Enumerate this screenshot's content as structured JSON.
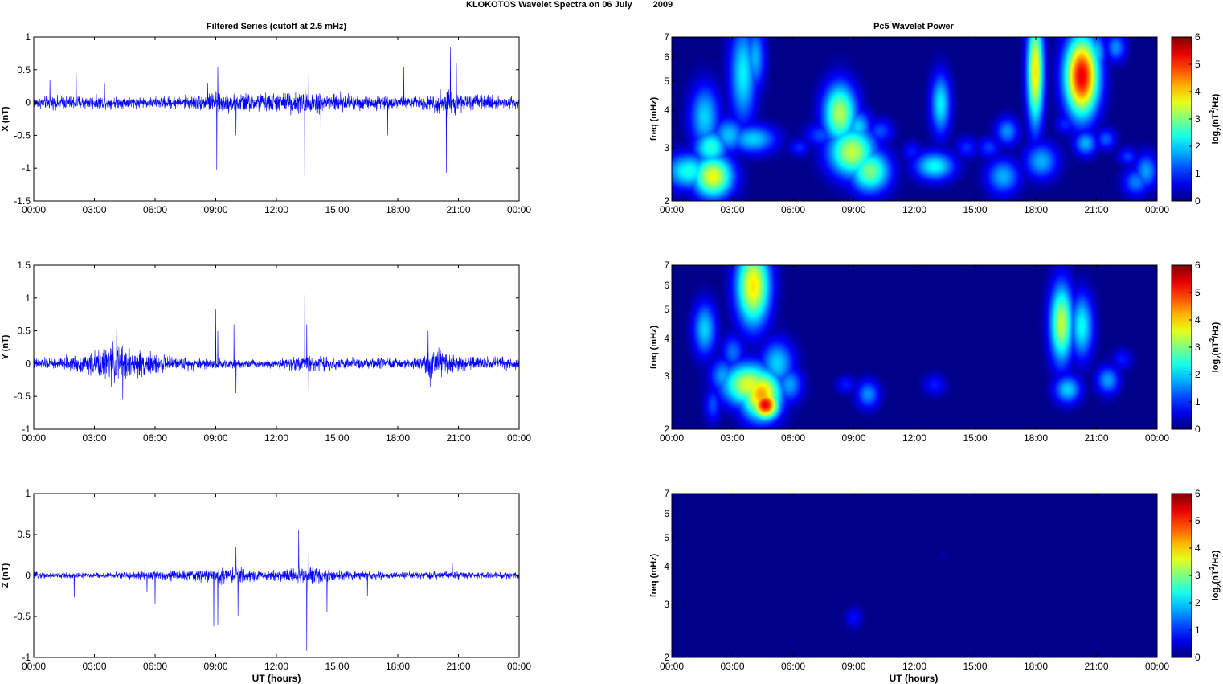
{
  "figure": {
    "title_prefix": "KLOKOTOS Wavelet Spectra on 06 July",
    "title_year": "2009",
    "left_title": "Filtered Series (cutoff at 2.5 mHz)",
    "right_title": "Pc5 Wavelet Power",
    "xlabel": "UT (hours)",
    "time_ticks": [
      "00:00",
      "03:00",
      "06:00",
      "09:00",
      "12:00",
      "15:00",
      "18:00",
      "21:00",
      "00:00"
    ]
  },
  "chart_data": [
    {
      "id": "X",
      "type": "line",
      "ylabel": "X (nT)",
      "ylim": [
        -1.5,
        1
      ],
      "yticks": [
        1,
        0.5,
        0,
        -0.5,
        -1,
        -1.5
      ],
      "ytick_labels": [
        "1",
        "0.5",
        "0",
        "-0.5",
        "-1",
        "-1.5"
      ],
      "xlim_hours": [
        0,
        24
      ],
      "color": "#0000ff",
      "envelope": [
        [
          0,
          0.07
        ],
        [
          2,
          0.09
        ],
        [
          3,
          0.08
        ],
        [
          4,
          0.07
        ],
        [
          6,
          0.07
        ],
        [
          8.5,
          0.1
        ],
        [
          9,
          0.13
        ],
        [
          10,
          0.12
        ],
        [
          12,
          0.12
        ],
        [
          13.5,
          0.15
        ],
        [
          16,
          0.1
        ],
        [
          18,
          0.07
        ],
        [
          19.5,
          0.09
        ],
        [
          20.5,
          0.18
        ],
        [
          21,
          0.11
        ],
        [
          22,
          0.09
        ],
        [
          24,
          0.08
        ]
      ],
      "spikes": [
        [
          0.8,
          0.35
        ],
        [
          2.1,
          0.45
        ],
        [
          3.5,
          0.3
        ],
        [
          8.6,
          0.3
        ],
        [
          9.05,
          -1.02
        ],
        [
          9.1,
          0.55
        ],
        [
          10.0,
          -0.5
        ],
        [
          13.4,
          -1.12
        ],
        [
          13.6,
          0.45
        ],
        [
          14.2,
          -0.6
        ],
        [
          17.5,
          -0.5
        ],
        [
          18.3,
          0.55
        ],
        [
          20.4,
          -1.07
        ],
        [
          20.6,
          0.85
        ],
        [
          20.9,
          0.6
        ]
      ]
    },
    {
      "id": "Y",
      "type": "line",
      "ylabel": "Y (nT)",
      "ylim": [
        -1,
        1.5
      ],
      "yticks": [
        1.5,
        1,
        0.5,
        0,
        -0.5,
        -1
      ],
      "ytick_labels": [
        "1.5",
        "1",
        "0.5",
        "0",
        "-0.5",
        "-1"
      ],
      "xlim_hours": [
        0,
        24
      ],
      "color": "#0000ff",
      "envelope": [
        [
          0,
          0.07
        ],
        [
          1,
          0.07
        ],
        [
          2,
          0.1
        ],
        [
          3,
          0.15
        ],
        [
          4,
          0.25
        ],
        [
          5,
          0.18
        ],
        [
          6,
          0.12
        ],
        [
          7,
          0.08
        ],
        [
          9,
          0.07
        ],
        [
          10,
          0.05
        ],
        [
          12,
          0.05
        ],
        [
          13,
          0.1
        ],
        [
          14,
          0.1
        ],
        [
          16,
          0.06
        ],
        [
          19,
          0.07
        ],
        [
          19.7,
          0.2
        ],
        [
          21,
          0.1
        ],
        [
          22,
          0.08
        ],
        [
          24,
          0.08
        ]
      ],
      "spikes": [
        [
          4.1,
          0.52
        ],
        [
          4.4,
          -0.55
        ],
        [
          9.0,
          0.83
        ],
        [
          9.1,
          0.5
        ],
        [
          9.9,
          0.6
        ],
        [
          10.0,
          -0.45
        ],
        [
          13.4,
          1.05
        ],
        [
          13.5,
          0.6
        ],
        [
          13.6,
          -0.45
        ],
        [
          19.5,
          0.5
        ],
        [
          19.6,
          -0.35
        ]
      ]
    },
    {
      "id": "Z",
      "type": "line",
      "ylabel": "Z (nT)",
      "ylim": [
        -1,
        1
      ],
      "yticks": [
        1,
        0.5,
        0,
        -0.5,
        -1
      ],
      "ytick_labels": [
        "1",
        "0.5",
        "0",
        "-0.5",
        "-1"
      ],
      "xlim_hours": [
        0,
        24
      ],
      "color": "#0000ff",
      "envelope": [
        [
          0,
          0.03
        ],
        [
          4,
          0.03
        ],
        [
          5.5,
          0.05
        ],
        [
          7,
          0.05
        ],
        [
          8.5,
          0.06
        ],
        [
          10,
          0.08
        ],
        [
          11,
          0.05
        ],
        [
          13,
          0.07
        ],
        [
          14,
          0.09
        ],
        [
          15,
          0.05
        ],
        [
          18,
          0.03
        ],
        [
          20.5,
          0.04
        ],
        [
          24,
          0.03
        ]
      ],
      "spikes": [
        [
          2.0,
          -0.27
        ],
        [
          5.5,
          0.28
        ],
        [
          5.6,
          -0.2
        ],
        [
          6.0,
          -0.35
        ],
        [
          8.9,
          -0.62
        ],
        [
          9.1,
          -0.6
        ],
        [
          10.0,
          0.35
        ],
        [
          10.1,
          -0.5
        ],
        [
          13.1,
          0.55
        ],
        [
          13.5,
          -0.92
        ],
        [
          13.6,
          0.3
        ],
        [
          14.5,
          -0.45
        ],
        [
          16.5,
          -0.25
        ],
        [
          20.7,
          0.15
        ]
      ]
    },
    {
      "id": "X-wavelet",
      "type": "heatmap",
      "ylabel": "freq (mHz)",
      "y_scale": "log",
      "ylim": [
        2,
        7
      ],
      "yticks": [
        2,
        3,
        4,
        5,
        6,
        7
      ],
      "ytick_labels": [
        "2",
        "3",
        "4",
        "5",
        "6",
        "7"
      ],
      "xlim_hours": [
        0,
        24
      ],
      "colorbar_label": "log2(nT^2/Hz)",
      "colorbar_ticks": [
        "0",
        "1",
        "2",
        "3",
        "4",
        "5",
        "6"
      ],
      "colorbar_range": [
        0,
        6
      ],
      "blobs": [
        [
          0.8,
          2.5,
          0.14,
          0.1,
          2.4
        ],
        [
          1.6,
          3.8,
          0.09,
          0.18,
          2.0
        ],
        [
          2.0,
          2.4,
          0.12,
          0.12,
          3.7
        ],
        [
          1.9,
          3.0,
          0.1,
          0.1,
          2.5
        ],
        [
          2.8,
          3.3,
          0.1,
          0.1,
          1.9
        ],
        [
          3.5,
          5.3,
          0.08,
          0.28,
          2.2
        ],
        [
          4.0,
          3.2,
          0.14,
          0.08,
          2.0
        ],
        [
          4.1,
          6.0,
          0.06,
          0.18,
          1.8
        ],
        [
          6.3,
          3.0,
          0.06,
          0.05,
          1.0
        ],
        [
          7.4,
          3.3,
          0.1,
          0.07,
          1.2
        ],
        [
          8.3,
          3.9,
          0.1,
          0.17,
          3.3
        ],
        [
          8.9,
          2.9,
          0.14,
          0.14,
          3.4
        ],
        [
          9.2,
          3.5,
          0.08,
          0.1,
          2.0
        ],
        [
          9.8,
          2.5,
          0.12,
          0.12,
          3.0
        ],
        [
          10.3,
          3.4,
          0.08,
          0.07,
          1.2
        ],
        [
          11.9,
          2.9,
          0.06,
          0.06,
          0.9
        ],
        [
          13.0,
          2.6,
          0.12,
          0.08,
          2.3
        ],
        [
          13.3,
          4.2,
          0.06,
          0.17,
          2.2
        ],
        [
          14.6,
          3.0,
          0.07,
          0.06,
          1.0
        ],
        [
          15.7,
          3.0,
          0.07,
          0.06,
          1.1
        ],
        [
          16.4,
          2.4,
          0.1,
          0.1,
          1.8
        ],
        [
          16.6,
          3.4,
          0.07,
          0.08,
          1.6
        ],
        [
          18.0,
          5.4,
          0.05,
          0.3,
          3.9
        ],
        [
          18.3,
          2.7,
          0.1,
          0.1,
          1.8
        ],
        [
          19.5,
          3.6,
          0.06,
          0.06,
          1.0
        ],
        [
          20.3,
          5.2,
          0.1,
          0.22,
          5.4
        ],
        [
          20.6,
          5.9,
          0.05,
          0.15,
          3.5
        ],
        [
          20.5,
          3.1,
          0.07,
          0.07,
          1.8
        ],
        [
          21.0,
          6.2,
          0.06,
          0.12,
          2.0
        ],
        [
          21.5,
          3.2,
          0.06,
          0.06,
          1.3
        ],
        [
          22.0,
          6.5,
          0.06,
          0.08,
          1.6
        ],
        [
          22.6,
          2.8,
          0.06,
          0.05,
          1.1
        ],
        [
          23.0,
          2.3,
          0.08,
          0.08,
          1.5
        ],
        [
          23.5,
          2.5,
          0.07,
          0.1,
          1.7
        ]
      ]
    },
    {
      "id": "Y-wavelet",
      "type": "heatmap",
      "ylabel": "freq (mHz)",
      "y_scale": "log",
      "ylim": [
        2,
        7
      ],
      "yticks": [
        2,
        3,
        4,
        5,
        6,
        7
      ],
      "ytick_labels": [
        "2",
        "3",
        "4",
        "5",
        "6",
        "7"
      ],
      "xlim_hours": [
        0,
        24
      ],
      "colorbar_label": "log2(nT^2/Hz)",
      "colorbar_ticks": [
        "0",
        "1",
        "2",
        "3",
        "4",
        "5",
        "6"
      ],
      "colorbar_range": [
        0,
        6
      ],
      "blobs": [
        [
          1.6,
          4.3,
          0.07,
          0.15,
          2.0
        ],
        [
          2.0,
          2.4,
          0.05,
          0.1,
          1.2
        ],
        [
          2.5,
          3.0,
          0.08,
          0.1,
          1.7
        ],
        [
          3.0,
          3.6,
          0.07,
          0.1,
          1.4
        ],
        [
          3.8,
          2.8,
          0.16,
          0.12,
          3.6
        ],
        [
          4.0,
          6.0,
          0.1,
          0.22,
          3.9
        ],
        [
          4.4,
          2.6,
          0.12,
          0.14,
          4.3
        ],
        [
          4.6,
          2.4,
          0.08,
          0.08,
          5.4
        ],
        [
          5.2,
          3.3,
          0.1,
          0.13,
          2.0
        ],
        [
          5.8,
          2.8,
          0.08,
          0.1,
          1.7
        ],
        [
          8.6,
          2.8,
          0.06,
          0.05,
          0.9
        ],
        [
          9.7,
          2.6,
          0.07,
          0.08,
          1.6
        ],
        [
          13.0,
          2.8,
          0.07,
          0.06,
          0.9
        ],
        [
          19.3,
          4.5,
          0.07,
          0.22,
          3.4
        ],
        [
          19.6,
          2.7,
          0.08,
          0.08,
          2.0
        ],
        [
          20.3,
          4.4,
          0.07,
          0.18,
          2.3
        ],
        [
          21.6,
          2.9,
          0.07,
          0.08,
          1.7
        ],
        [
          22.3,
          3.4,
          0.06,
          0.06,
          0.9
        ]
      ]
    },
    {
      "id": "Z-wavelet",
      "type": "heatmap",
      "ylabel": "freq (mHz)",
      "y_scale": "log",
      "ylim": [
        2,
        7
      ],
      "yticks": [
        2,
        3,
        4,
        5,
        6,
        7
      ],
      "ytick_labels": [
        "2",
        "3",
        "4",
        "5",
        "6",
        "7"
      ],
      "xlim_hours": [
        0,
        24
      ],
      "colorbar_label": "log2(nT^2/Hz)",
      "colorbar_ticks": [
        "0",
        "1",
        "2",
        "3",
        "4",
        "5",
        "6"
      ],
      "colorbar_range": [
        0,
        6
      ],
      "blobs": [
        [
          9.0,
          2.7,
          0.05,
          0.06,
          0.8
        ],
        [
          13.4,
          4.4,
          0.03,
          0.03,
          0.25
        ]
      ]
    }
  ]
}
